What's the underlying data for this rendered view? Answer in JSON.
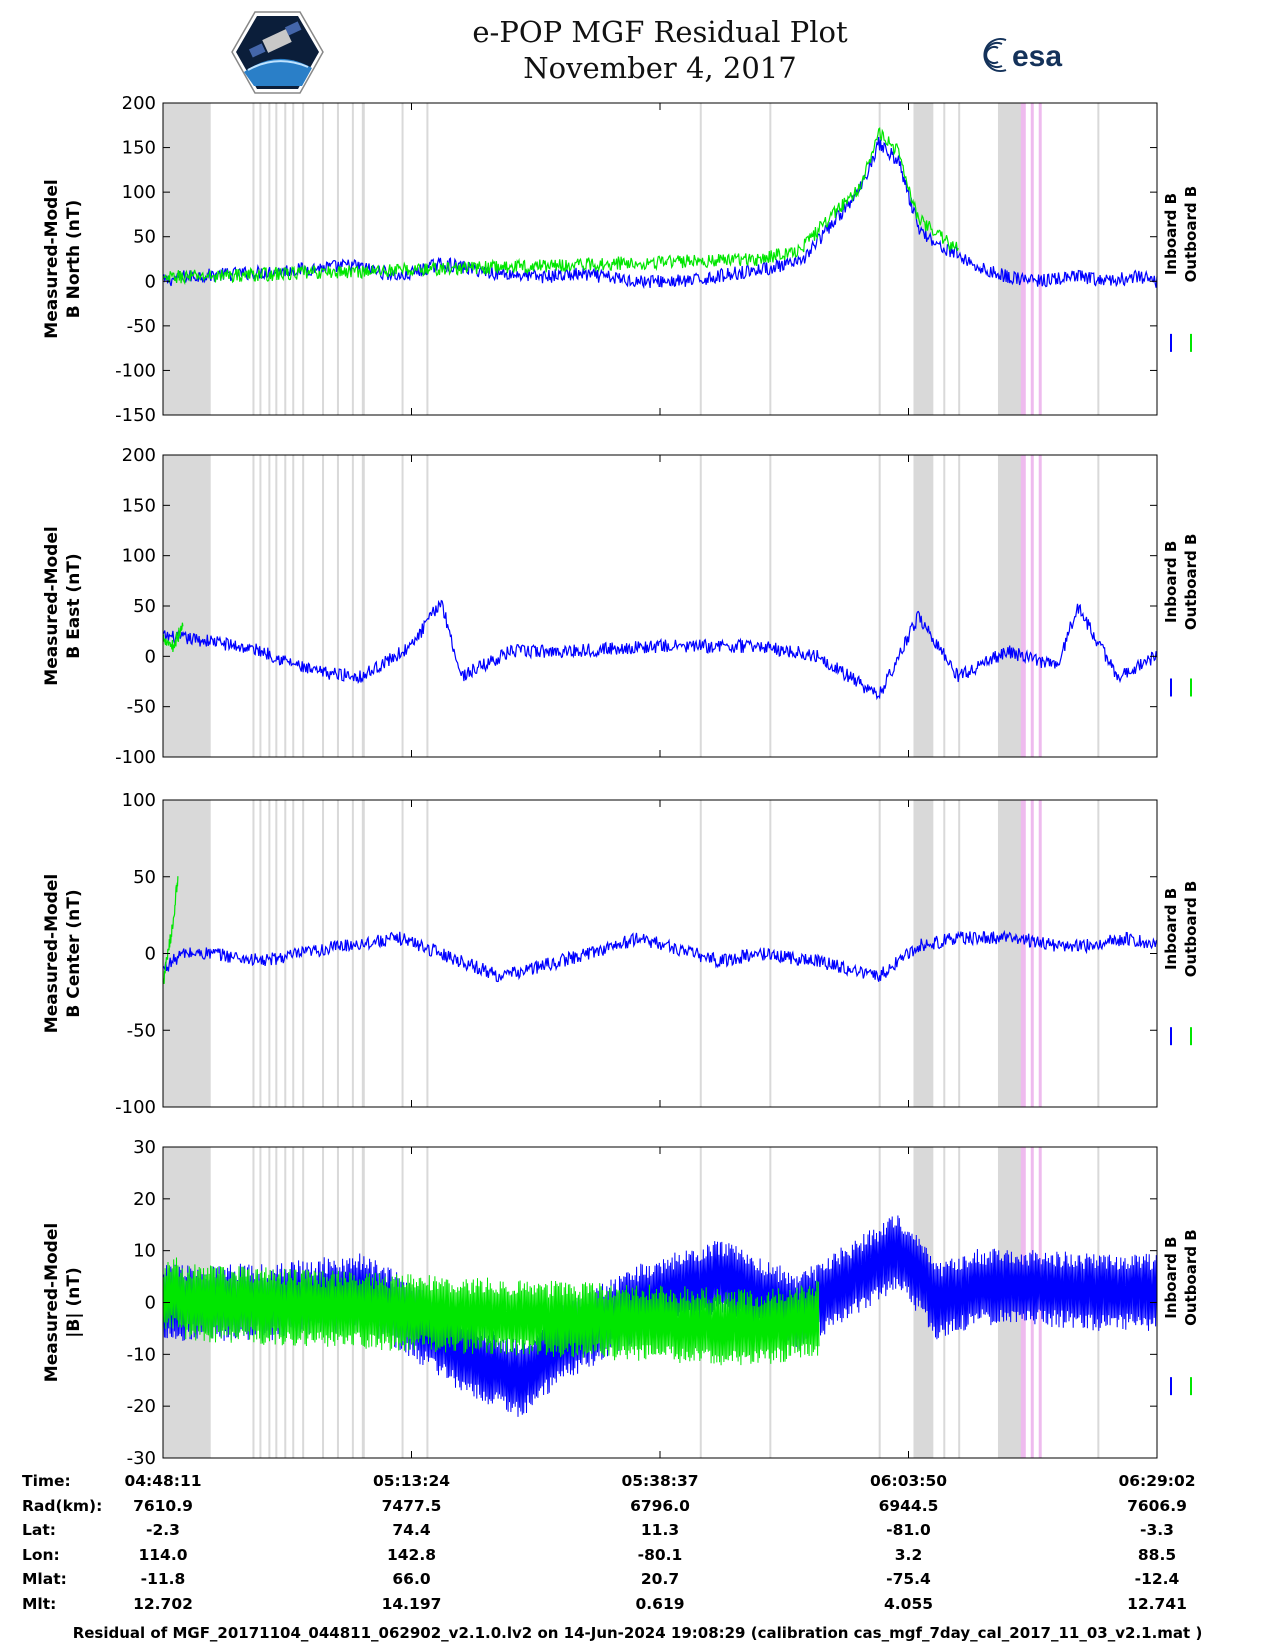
{
  "title_line1": "e-POP MGF Residual Plot",
  "title_line2": "November 4, 2017",
  "logos": {
    "left": "cassiope-mission-patch",
    "right_text": "esa"
  },
  "colors": {
    "inboard": "#0000ff",
    "outboard": "#00e600",
    "gap": "#d9d9d9",
    "flag": "#eebbee"
  },
  "legend": [
    "Inboard B",
    "Outboard B"
  ],
  "chart_data": [
    {
      "type": "line",
      "ylabel": [
        "Measured-Model",
        "B North (nT)"
      ],
      "ylim": [
        -150,
        200
      ],
      "yticks": [
        -150,
        -100,
        -50,
        0,
        50,
        100,
        150,
        200
      ],
      "series": [
        {
          "name": "Inboard B",
          "x": [
            0,
            0.02,
            0.1,
            0.16,
            0.19,
            0.24,
            0.28,
            0.33,
            0.38,
            0.42,
            0.48,
            0.53,
            0.58,
            0.64,
            0.7,
            0.72,
            0.74,
            0.76,
            0.78,
            0.8,
            0.82,
            0.85,
            0.88,
            0.92,
            0.95,
            0.98,
            1.0
          ],
          "values": [
            0,
            5,
            10,
            15,
            18,
            5,
            20,
            10,
            5,
            8,
            0,
            0,
            10,
            20,
            100,
            155,
            135,
            60,
            40,
            30,
            15,
            5,
            0,
            5,
            0,
            5,
            0
          ]
        },
        {
          "name": "Outboard B",
          "x": [
            0,
            0.01,
            0.02,
            0.6,
            0.64,
            0.7,
            0.72,
            0.74,
            0.76,
            0.8
          ],
          "values": [
            0,
            5,
            5,
            25,
            35,
            105,
            165,
            145,
            70,
            35
          ]
        }
      ]
    },
    {
      "type": "line",
      "ylabel": [
        "Measured-Model",
        "B East (nT)"
      ],
      "ylim": [
        -100,
        200
      ],
      "yticks": [
        -100,
        -50,
        0,
        50,
        100,
        150,
        200
      ],
      "series": [
        {
          "name": "Inboard B",
          "x": [
            0,
            0.05,
            0.1,
            0.15,
            0.2,
            0.25,
            0.28,
            0.3,
            0.35,
            0.4,
            0.5,
            0.6,
            0.66,
            0.72,
            0.76,
            0.8,
            0.85,
            0.9,
            0.92,
            0.96,
            1.0
          ],
          "values": [
            20,
            15,
            5,
            -15,
            -20,
            10,
            55,
            -20,
            5,
            5,
            10,
            10,
            0,
            -40,
            40,
            -20,
            5,
            -10,
            50,
            -20,
            0
          ]
        },
        {
          "name": "Outboard B",
          "x": [
            0,
            0.01,
            0.02
          ],
          "values": [
            20,
            10,
            30
          ]
        }
      ]
    },
    {
      "type": "line",
      "ylabel": [
        "Measured-Model",
        "B Center (nT)"
      ],
      "ylim": [
        -100,
        100
      ],
      "yticks": [
        -100,
        -50,
        0,
        50,
        100
      ],
      "series": [
        {
          "name": "Inboard B",
          "x": [
            0,
            0.02,
            0.05,
            0.1,
            0.18,
            0.24,
            0.28,
            0.34,
            0.4,
            0.48,
            0.56,
            0.6,
            0.66,
            0.72,
            0.76,
            0.8,
            0.86,
            0.9,
            0.93,
            0.97,
            1.0
          ],
          "values": [
            -10,
            0,
            0,
            -5,
            5,
            10,
            0,
            -15,
            -5,
            10,
            -5,
            0,
            -5,
            -15,
            5,
            10,
            10,
            5,
            5,
            10,
            5
          ]
        },
        {
          "name": "Outboard B",
          "x": [
            0,
            0.01,
            0.015
          ],
          "values": [
            -20,
            20,
            50
          ]
        }
      ]
    },
    {
      "type": "line",
      "ylabel": [
        "Measured-Model",
        "|B| (nT)"
      ],
      "ylim": [
        -30,
        30
      ],
      "yticks": [
        -30,
        -20,
        -10,
        0,
        10,
        20,
        30
      ],
      "series": [
        {
          "name": "Inboard B",
          "x": [
            0,
            0.1,
            0.2,
            0.24,
            0.3,
            0.36,
            0.4,
            0.48,
            0.56,
            0.64,
            0.68,
            0.74,
            0.78,
            0.82,
            0.88,
            0.94,
            1.0
          ],
          "values": [
            0,
            0,
            2,
            -2,
            -10,
            -15,
            -8,
            0,
            5,
            -2,
            3,
            10,
            0,
            3,
            3,
            2,
            2
          ]
        },
        {
          "name": "Outboard B",
          "x": [
            0,
            0.01,
            0.02,
            0.6,
            0.66
          ],
          "values": [
            0,
            2,
            0,
            -5,
            -3
          ]
        }
      ]
    }
  ],
  "table": {
    "labels": [
      "Time:",
      "Rad(km):",
      "Lat:",
      "Lon:",
      "Mlat:",
      "Mlt:"
    ],
    "columns": [
      [
        "04:48:11",
        "7610.9",
        "-2.3",
        "114.0",
        "-11.8",
        "12.702"
      ],
      [
        "05:13:24",
        "7477.5",
        "74.4",
        "142.8",
        "66.0",
        "14.197"
      ],
      [
        "05:38:37",
        "6796.0",
        "11.3",
        "-80.1",
        "20.7",
        "0.619"
      ],
      [
        "06:03:50",
        "6944.5",
        "-81.0",
        "3.2",
        "-75.4",
        "4.055"
      ],
      [
        "06:29:02",
        "7606.9",
        "-3.3",
        "88.5",
        "-12.4",
        "12.741"
      ]
    ]
  },
  "footer": "Residual of MGF_20171104_044811_062902_v2.1.0.lv2 on 14-Jun-2024 19:08:29 (calibration cas_mgf_7day_cal_2017_11_03_v2.1.mat )"
}
